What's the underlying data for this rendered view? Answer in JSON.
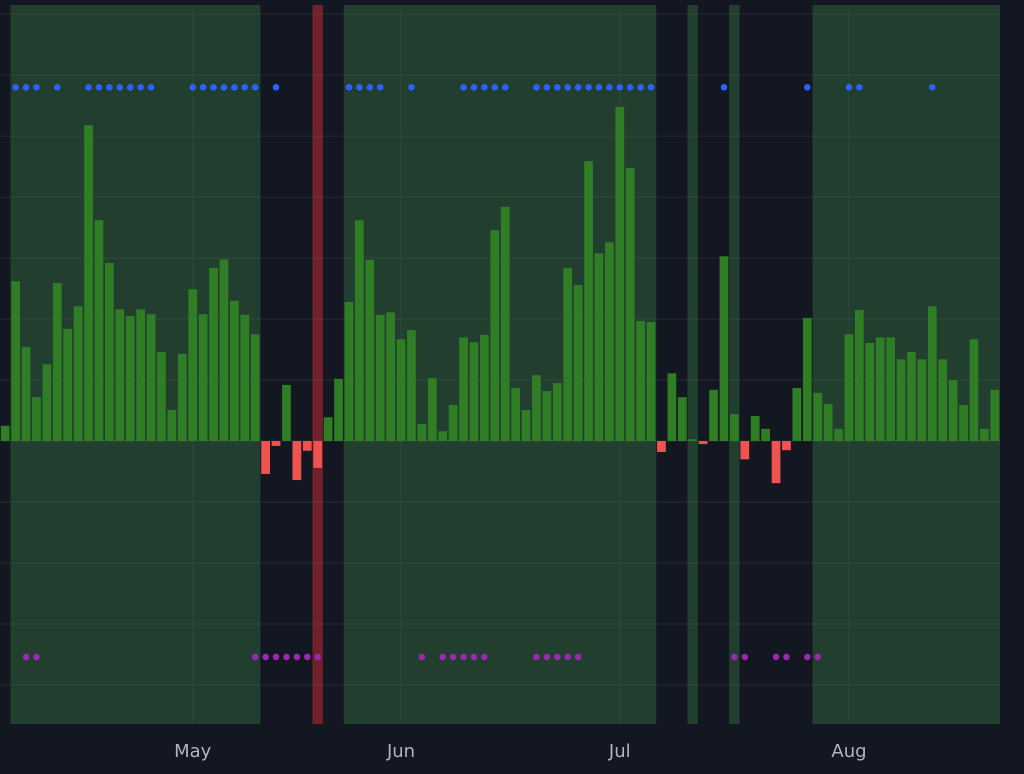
{
  "chart_data": {
    "type": "bar",
    "categories": [
      null,
      null,
      null,
      null,
      null,
      null,
      null,
      null,
      null,
      null,
      null,
      null,
      null,
      null,
      null,
      null,
      null,
      null,
      "May",
      null,
      null,
      null,
      null,
      null,
      null,
      null,
      null,
      null,
      null,
      null,
      null,
      null,
      null,
      null,
      null,
      null,
      null,
      null,
      "Jun",
      null,
      null,
      null,
      null,
      null,
      null,
      null,
      null,
      null,
      null,
      null,
      null,
      null,
      null,
      null,
      null,
      null,
      null,
      null,
      null,
      "Jul",
      null,
      null,
      null,
      null,
      null,
      null,
      null,
      null,
      null,
      null,
      null,
      null,
      null,
      null,
      null,
      null,
      null,
      null,
      null,
      null,
      null,
      "Aug",
      null,
      null,
      null,
      null,
      null,
      null,
      null,
      null,
      null,
      null,
      null,
      null,
      null,
      null
    ],
    "values": [
      0.25,
      2.62,
      1.54,
      0.72,
      1.26,
      2.59,
      1.84,
      2.21,
      5.18,
      3.62,
      2.92,
      2.16,
      2.05,
      2.16,
      2.08,
      1.46,
      0.51,
      1.43,
      2.49,
      2.08,
      2.84,
      2.98,
      2.3,
      2.07,
      1.75,
      -0.54,
      -0.08,
      0.92,
      -0.64,
      -0.16,
      -0.44,
      0.39,
      1.02,
      2.28,
      3.62,
      2.97,
      2.07,
      2.11,
      1.67,
      1.82,
      0.28,
      1.03,
      0.16,
      0.59,
      1.7,
      1.62,
      1.74,
      3.46,
      3.84,
      0.87,
      0.51,
      1.08,
      0.82,
      0.95,
      2.84,
      2.56,
      4.59,
      3.08,
      3.26,
      5.48,
      4.48,
      1.97,
      1.95,
      -0.18,
      1.11,
      0.72,
      0.03,
      -0.05,
      0.84,
      3.03,
      0.44,
      -0.3,
      0.41,
      0.2,
      -0.69,
      -0.15,
      0.87,
      2.02,
      0.79,
      0.61,
      0.2,
      1.75,
      2.15,
      1.61,
      1.7,
      1.7,
      1.34,
      1.46,
      1.34,
      2.21,
      1.34,
      1.0,
      0.59,
      1.67,
      0.2,
      0.84
    ],
    "positive_color": "#2f7d24",
    "negative_color": "#ef5350",
    "markers": [
      {
        "color": "#2962ff",
        "values": [
          null,
          5.8,
          5.8,
          5.8,
          null,
          5.8,
          null,
          null,
          5.8,
          5.8,
          5.8,
          5.8,
          5.8,
          5.8,
          5.8,
          null,
          null,
          null,
          5.8,
          5.8,
          5.8,
          5.8,
          5.8,
          5.8,
          5.8,
          null,
          5.8,
          null,
          null,
          null,
          null,
          null,
          null,
          5.8,
          5.8,
          5.8,
          5.8,
          null,
          null,
          5.8,
          null,
          null,
          null,
          null,
          5.8,
          5.8,
          5.8,
          5.8,
          5.8,
          null,
          null,
          5.8,
          5.8,
          5.8,
          5.8,
          5.8,
          5.8,
          5.8,
          5.8,
          5.8,
          5.8,
          5.8,
          5.8,
          null,
          null,
          null,
          null,
          null,
          null,
          5.8,
          null,
          null,
          null,
          null,
          null,
          null,
          null,
          5.8,
          null,
          null,
          null,
          5.8,
          5.8,
          null,
          null,
          null,
          null,
          null,
          null,
          5.8,
          null,
          null,
          null,
          null,
          null,
          null
        ]
      },
      {
        "color": "#9c27b0",
        "values": [
          null,
          null,
          -3.54,
          -3.54,
          null,
          null,
          null,
          null,
          null,
          null,
          null,
          null,
          null,
          null,
          null,
          null,
          null,
          null,
          null,
          null,
          null,
          null,
          null,
          null,
          -3.54,
          -3.54,
          -3.54,
          -3.54,
          -3.54,
          -3.54,
          -3.54,
          null,
          null,
          null,
          null,
          null,
          null,
          null,
          null,
          null,
          -3.54,
          null,
          -3.54,
          -3.54,
          -3.54,
          -3.54,
          -3.54,
          null,
          null,
          null,
          null,
          -3.54,
          -3.54,
          -3.54,
          -3.54,
          -3.54,
          null,
          null,
          null,
          null,
          null,
          null,
          null,
          null,
          null,
          null,
          null,
          null,
          null,
          null,
          -3.54,
          -3.54,
          null,
          null,
          -3.54,
          -3.54,
          null,
          -3.54,
          -3.54,
          null,
          null,
          null,
          null,
          null,
          null,
          null,
          null,
          null,
          null,
          null,
          null,
          null,
          null,
          null,
          null,
          null
        ]
      }
    ],
    "regions": [
      {
        "from": 1,
        "to": 24,
        "color": "rgba(76,175,80,0.26)"
      },
      {
        "from": 30,
        "to": 30,
        "color": "rgba(178,40,51,0.6)"
      },
      {
        "from": 33,
        "to": 62,
        "color": "rgba(76,175,80,0.26)"
      },
      {
        "from": 66,
        "to": 66,
        "color": "rgba(76,175,80,0.26)"
      },
      {
        "from": 70,
        "to": 70,
        "color": "rgba(76,175,80,0.26)"
      },
      {
        "from": 78,
        "to": 95,
        "color": "rgba(76,175,80,0.26)"
      }
    ],
    "ylim": [
      -4.64,
      7.15
    ],
    "yticks": [
      -4,
      -3,
      -2,
      -1,
      0,
      1,
      2,
      3,
      4,
      5,
      6,
      7
    ],
    "grid": true
  }
}
